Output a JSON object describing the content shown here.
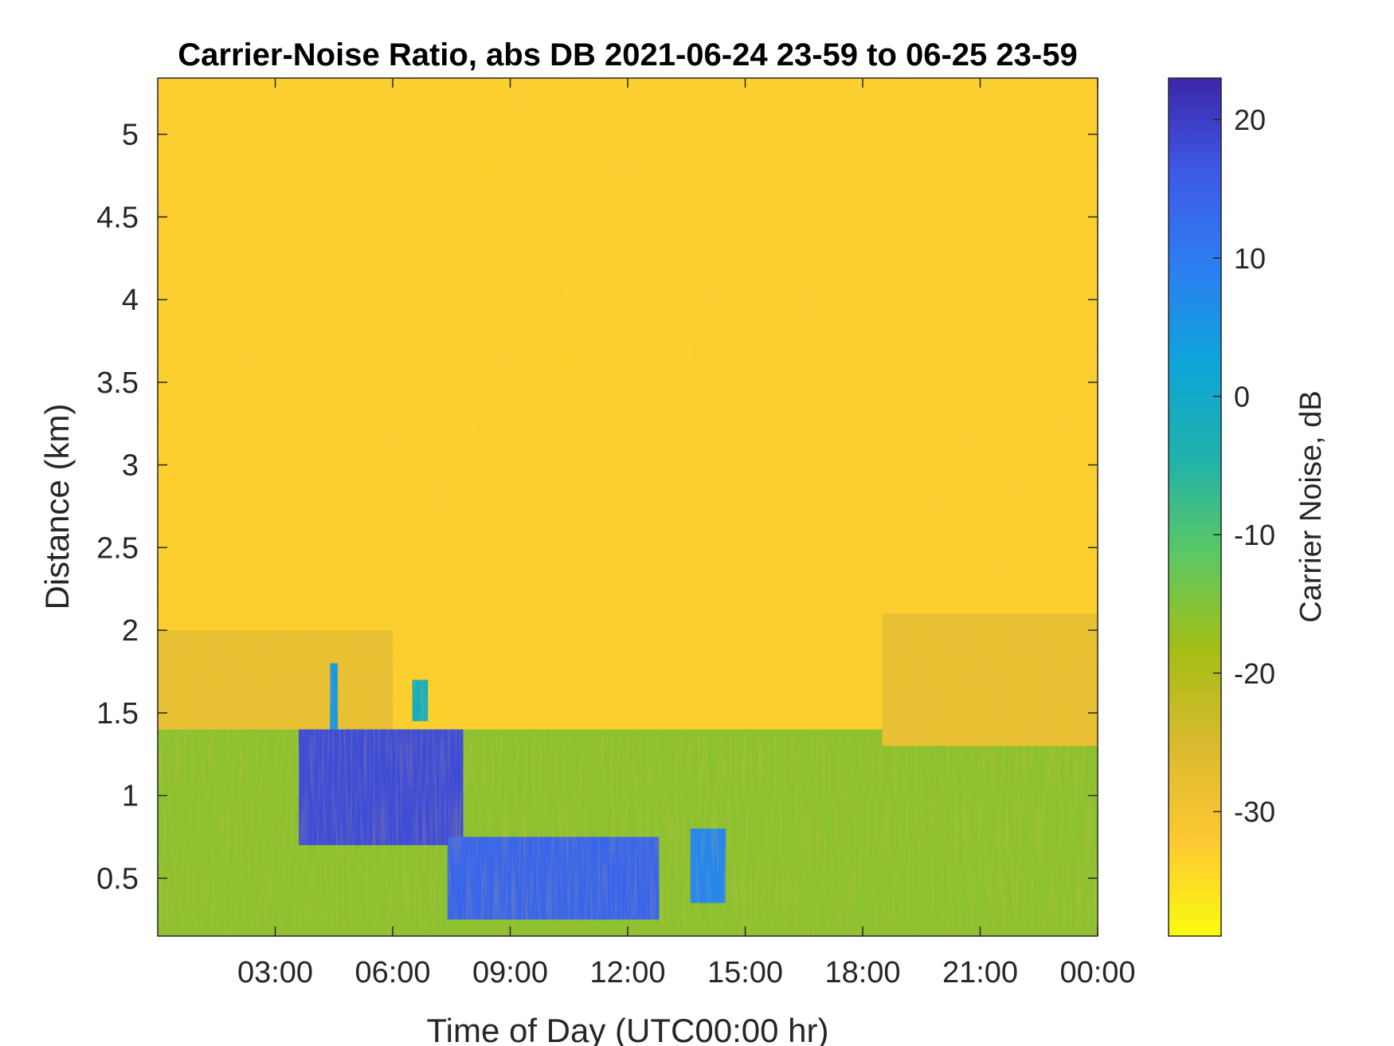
{
  "chart_data": {
    "type": "heatmap",
    "title": "Carrier-Noise Ratio, abs DB 2021-06-24 23-59 to 06-25 23-59",
    "xlabel": "Time of Day (UTC00:00 hr)",
    "ylabel": "Distance (km)",
    "colorbar_label": "Carrier Noise, dB",
    "xlim_hours": [
      0,
      24
    ],
    "x_ticks": [
      {
        "hour": 3,
        "label": "03:00"
      },
      {
        "hour": 6,
        "label": "06:00"
      },
      {
        "hour": 9,
        "label": "09:00"
      },
      {
        "hour": 12,
        "label": "12:00"
      },
      {
        "hour": 15,
        "label": "15:00"
      },
      {
        "hour": 18,
        "label": "18:00"
      },
      {
        "hour": 21,
        "label": "21:00"
      },
      {
        "hour": 24,
        "label": "00:00"
      }
    ],
    "ylim": [
      0.15,
      5.34
    ],
    "y_ticks": [
      {
        "value": 0.5,
        "label": "0.5"
      },
      {
        "value": 1,
        "label": "1"
      },
      {
        "value": 1.5,
        "label": "1.5"
      },
      {
        "value": 2,
        "label": "2"
      },
      {
        "value": 2.5,
        "label": "2.5"
      },
      {
        "value": 3,
        "label": "3"
      },
      {
        "value": 3.5,
        "label": "3.5"
      },
      {
        "value": 4,
        "label": "4"
      },
      {
        "value": 4.5,
        "label": "4.5"
      },
      {
        "value": 5,
        "label": "5"
      }
    ],
    "clim": [
      -39,
      23
    ],
    "colorbar_ticks": [
      {
        "value": 20,
        "label": "20"
      },
      {
        "value": 10,
        "label": "10"
      },
      {
        "value": 0,
        "label": "0"
      },
      {
        "value": -10,
        "label": "-10"
      },
      {
        "value": -20,
        "label": "-20"
      },
      {
        "value": -30,
        "label": "-30"
      }
    ],
    "colormap": "parula (reversed: yellow = low, dark blue = high)",
    "colormap_stops": [
      "#f9fb0e",
      "#fec832",
      "#d9ba30",
      "#a5be14",
      "#5cc863",
      "#20b2aa",
      "#0ea5d9",
      "#2b7ff0",
      "#3e5ae8",
      "#3d26a8"
    ],
    "background_value_dB": -33,
    "regions": [
      {
        "name": "near-surface layer",
        "hours": [
          0,
          24
        ],
        "distance_km": [
          0.15,
          1.4
        ],
        "value_dB": -16
      },
      {
        "name": "night boundary layer (morning)",
        "hours": [
          0,
          6
        ],
        "distance_km": [
          1.4,
          2.0
        ],
        "value_dB": -28
      },
      {
        "name": "night boundary layer (evening)",
        "hours": [
          18.5,
          24
        ],
        "distance_km": [
          1.3,
          2.1
        ],
        "value_dB": -28
      },
      {
        "name": "morning descending cloud layer",
        "hours": [
          3.6,
          7.8
        ],
        "distance_km": [
          0.7,
          1.4
        ],
        "value_dB": 18
      },
      {
        "name": "isolated echo",
        "hours": [
          4.4,
          4.6
        ],
        "distance_km": [
          1.4,
          1.8
        ],
        "value_dB": 5
      },
      {
        "name": "isolated echo",
        "hours": [
          6.5,
          6.9
        ],
        "distance_km": [
          1.45,
          1.7
        ],
        "value_dB": -2
      },
      {
        "name": "midday low cloud layer",
        "hours": [
          7.4,
          12.8
        ],
        "distance_km": [
          0.25,
          0.75
        ],
        "value_dB": 14
      },
      {
        "name": "afternoon low cloud echo",
        "hours": [
          13.6,
          14.5
        ],
        "distance_km": [
          0.35,
          0.8
        ],
        "value_dB": 8
      }
    ]
  }
}
